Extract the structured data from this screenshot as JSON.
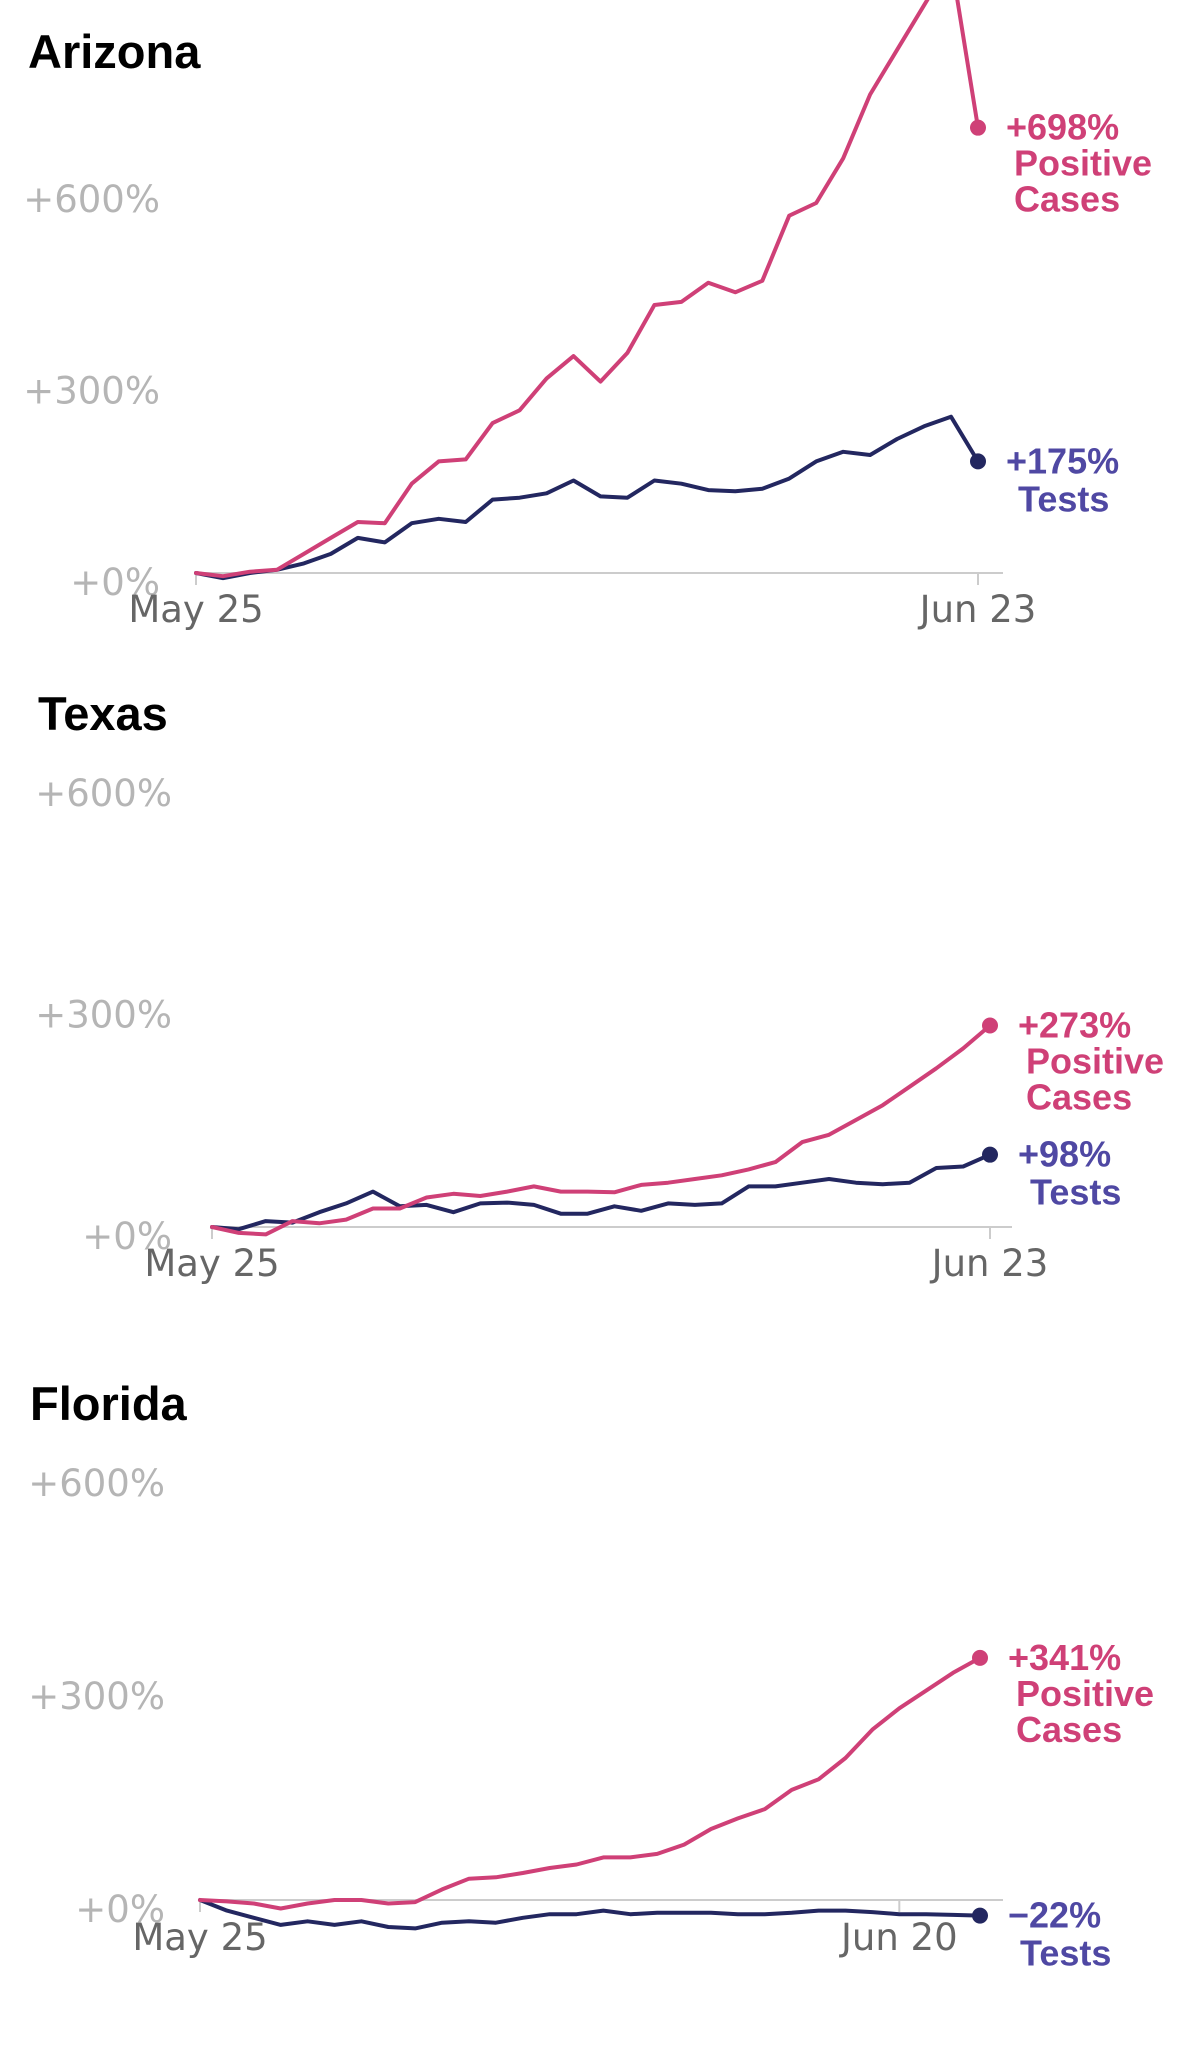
{
  "colors": {
    "cases": "#cf4077",
    "tests": "#232760",
    "tests_label": "#4f48a3",
    "baseline": "#cccccc",
    "tick_y": "#b5b5b5",
    "tick_x": "#666666"
  },
  "panels": [
    {
      "title": "Arizona",
      "cases_value_label": "+698%",
      "cases_name_line1": "Positive",
      "cases_name_line2": "Cases",
      "tests_value_label": "+175%",
      "tests_name": "Tests"
    },
    {
      "title": "Texas",
      "cases_value_label": "+273%",
      "cases_name_line1": "Positive",
      "cases_name_line2": "Cases",
      "tests_value_label": "+98%",
      "tests_name": "Tests"
    },
    {
      "title": "Florida",
      "cases_value_label": "+341%",
      "cases_name_line1": "Positive",
      "cases_name_line2": "Cases",
      "tests_value_label": "−22%",
      "tests_name": "Tests"
    }
  ],
  "chart_data": [
    {
      "type": "line",
      "title": "Arizona",
      "y_ticks": [
        "+600%",
        "+300%",
        "+0%"
      ],
      "y_tick_values": [
        600,
        300,
        0
      ],
      "x_tick_labels": [
        "May 25",
        "Jun 23"
      ],
      "x_tick_days": [
        0,
        29
      ],
      "ylim": [
        0,
        698
      ],
      "series": [
        {
          "name": "Positive Cases",
          "end_label": "+698%",
          "x": [
            0,
            1,
            2,
            3,
            4,
            5,
            6,
            7,
            8,
            9,
            10,
            11,
            12,
            13,
            14,
            15,
            16,
            17,
            18,
            19,
            20,
            21,
            22,
            23,
            24,
            25,
            26,
            27,
            28,
            29
          ],
          "y": [
            0,
            -5,
            2,
            5,
            30,
            55,
            80,
            78,
            140,
            175,
            178,
            235,
            255,
            305,
            340,
            300,
            345,
            420,
            425,
            455,
            440,
            458,
            560,
            580,
            650,
            750,
            820,
            890,
            960,
            698
          ]
        },
        {
          "name": "Tests",
          "end_label": "+175%",
          "x": [
            0,
            1,
            2,
            3,
            4,
            5,
            6,
            7,
            8,
            9,
            10,
            11,
            12,
            13,
            14,
            15,
            16,
            17,
            18,
            19,
            20,
            21,
            22,
            23,
            24,
            25,
            26,
            27,
            28,
            29
          ],
          "y": [
            0,
            -8,
            0,
            5,
            15,
            30,
            55,
            48,
            78,
            85,
            80,
            115,
            118,
            125,
            145,
            120,
            118,
            145,
            140,
            130,
            128,
            132,
            148,
            175,
            190,
            185,
            210,
            230,
            245,
            175
          ]
        }
      ]
    },
    {
      "type": "line",
      "title": "Texas",
      "y_ticks": [
        "+600%",
        "+300%",
        "+0%"
      ],
      "y_tick_values": [
        600,
        300,
        0
      ],
      "x_tick_labels": [
        "May 25",
        "Jun 23"
      ],
      "x_tick_days": [
        0,
        29
      ],
      "ylim": [
        0,
        273
      ],
      "series": [
        {
          "name": "Positive Cases",
          "end_label": "+273%",
          "x": [
            0,
            1,
            2,
            3,
            4,
            5,
            6,
            7,
            8,
            9,
            10,
            11,
            12,
            13,
            14,
            15,
            16,
            17,
            18,
            19,
            20,
            21,
            22,
            23,
            24,
            25,
            26,
            27,
            28,
            29
          ],
          "y": [
            0,
            -8,
            -10,
            8,
            5,
            10,
            25,
            25,
            40,
            45,
            42,
            48,
            55,
            48,
            48,
            47,
            57,
            60,
            65,
            70,
            78,
            88,
            115,
            125,
            145,
            165,
            190,
            215,
            242,
            273
          ]
        },
        {
          "name": "Tests",
          "end_label": "+98%",
          "x": [
            0,
            1,
            2,
            3,
            4,
            5,
            6,
            7,
            8,
            9,
            10,
            11,
            12,
            13,
            14,
            15,
            16,
            17,
            18,
            19,
            20,
            21,
            22,
            23,
            24,
            25,
            26,
            27,
            28,
            29
          ],
          "y": [
            0,
            -3,
            8,
            6,
            20,
            32,
            48,
            28,
            30,
            20,
            32,
            33,
            30,
            18,
            18,
            28,
            22,
            32,
            30,
            32,
            55,
            55,
            60,
            65,
            60,
            58,
            60,
            80,
            82,
            98
          ]
        }
      ]
    },
    {
      "type": "line",
      "title": "Florida",
      "y_ticks": [
        "+600%",
        "+300%",
        "+0%"
      ],
      "y_tick_values": [
        600,
        300,
        0
      ],
      "x_tick_labels": [
        "May 25",
        "Jun 20"
      ],
      "x_tick_days": [
        0,
        26
      ],
      "ylim": [
        -22,
        341
      ],
      "series": [
        {
          "name": "Positive Cases",
          "end_label": "+341%",
          "x": [
            0,
            1,
            2,
            3,
            4,
            5,
            6,
            7,
            8,
            9,
            10,
            11,
            12,
            13,
            14,
            15,
            16,
            17,
            18,
            19,
            20,
            21,
            22,
            23,
            24,
            25,
            26,
            27,
            28,
            29
          ],
          "y": [
            0,
            -2,
            -5,
            -12,
            -5,
            0,
            0,
            -5,
            -3,
            15,
            30,
            32,
            38,
            45,
            50,
            60,
            60,
            65,
            78,
            100,
            115,
            128,
            155,
            170,
            200,
            240,
            270,
            295,
            320,
            341
          ]
        },
        {
          "name": "Tests",
          "end_label": "−22%",
          "x": [
            0,
            1,
            2,
            3,
            4,
            5,
            6,
            7,
            8,
            9,
            10,
            11,
            12,
            13,
            14,
            15,
            16,
            17,
            18,
            19,
            20,
            21,
            22,
            23,
            24,
            25,
            26,
            27,
            28,
            29
          ],
          "y": [
            0,
            -15,
            -25,
            -35,
            -30,
            -35,
            -30,
            -38,
            -40,
            -32,
            -30,
            -32,
            -25,
            -20,
            -20,
            -15,
            -20,
            -18,
            -18,
            -18,
            -20,
            -20,
            -18,
            -15,
            -15,
            -17,
            -20,
            -20,
            -21,
            -22
          ]
        }
      ]
    }
  ]
}
